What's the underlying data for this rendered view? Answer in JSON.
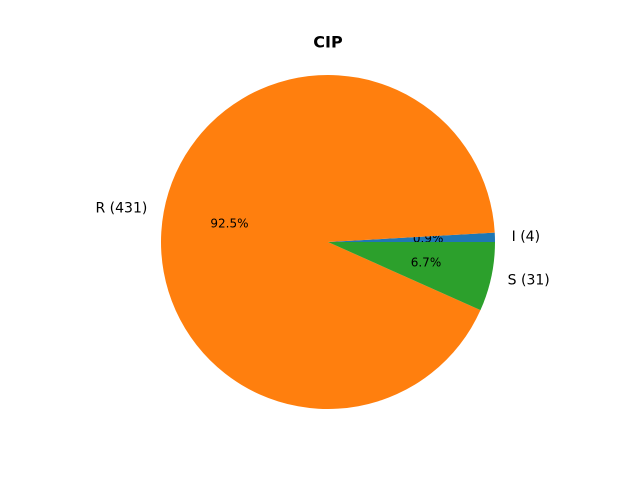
{
  "chart_data": {
    "type": "pie",
    "title": "CIP",
    "categories": [
      "I (4)",
      "R (431)",
      "S (31)"
    ],
    "values": [
      0.9,
      92.5,
      6.7
    ],
    "value_labels": [
      "0.9%",
      "92.5%",
      "6.7%"
    ],
    "colors": [
      "#1f77b4",
      "#ff7f0e",
      "#2ca02c"
    ]
  }
}
